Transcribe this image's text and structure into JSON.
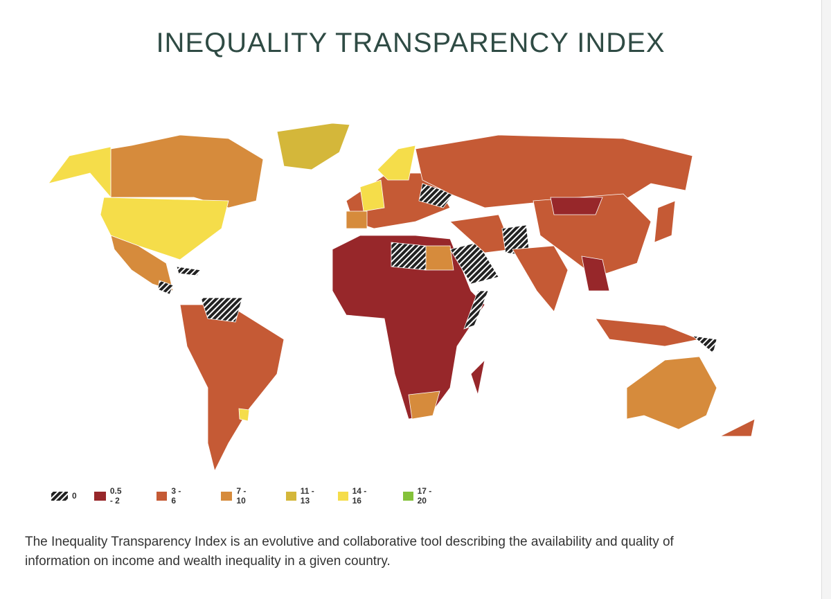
{
  "header": {
    "title": "INEQUALITY TRANSPARENCY INDEX"
  },
  "legend": [
    {
      "label": "0"
    },
    {
      "label": "0.5 - 2"
    },
    {
      "label": "3 - 6"
    },
    {
      "label": "7 - 10"
    },
    {
      "label": "11 - 13"
    },
    {
      "label": "14 - 16"
    },
    {
      "label": "17 - 20"
    }
  ],
  "description": [
    "The Inequality Transparency Index is an evolutive and collaborative tool describing the availability and quality of",
    "information on income and wealth inequality in a given country."
  ]
}
